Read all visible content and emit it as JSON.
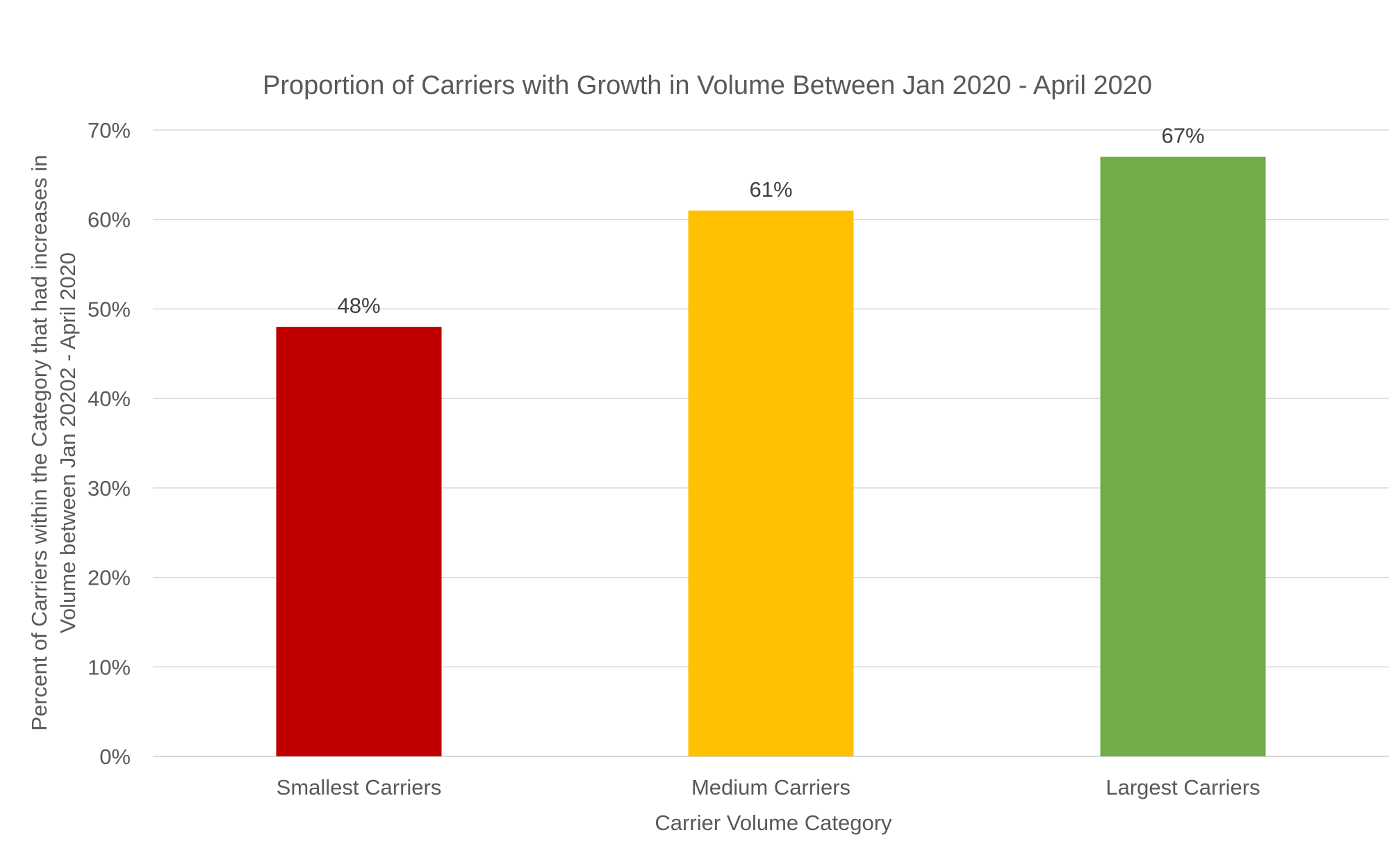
{
  "chart_data": {
    "type": "bar",
    "title": "Proportion of Carriers with Growth in Volume Between Jan 2020 - April 2020",
    "xlabel": "Carrier Volume Category",
    "ylabel": [
      "Percent of Carriers within the Category that had increases in",
      "Volume between Jan 20202 - April 2020"
    ],
    "categories": [
      "Smallest Carriers",
      "Medium Carriers",
      "Largest Carriers"
    ],
    "values": [
      48,
      61,
      67
    ],
    "data_labels": [
      "48%",
      "61%",
      "67%"
    ],
    "ylim": [
      0,
      70
    ],
    "yticks": [
      "0%",
      "10%",
      "20%",
      "30%",
      "40%",
      "50%",
      "60%",
      "70%"
    ],
    "colors": [
      "#c00000",
      "#ffc000",
      "#70ad47"
    ],
    "grid": true
  }
}
